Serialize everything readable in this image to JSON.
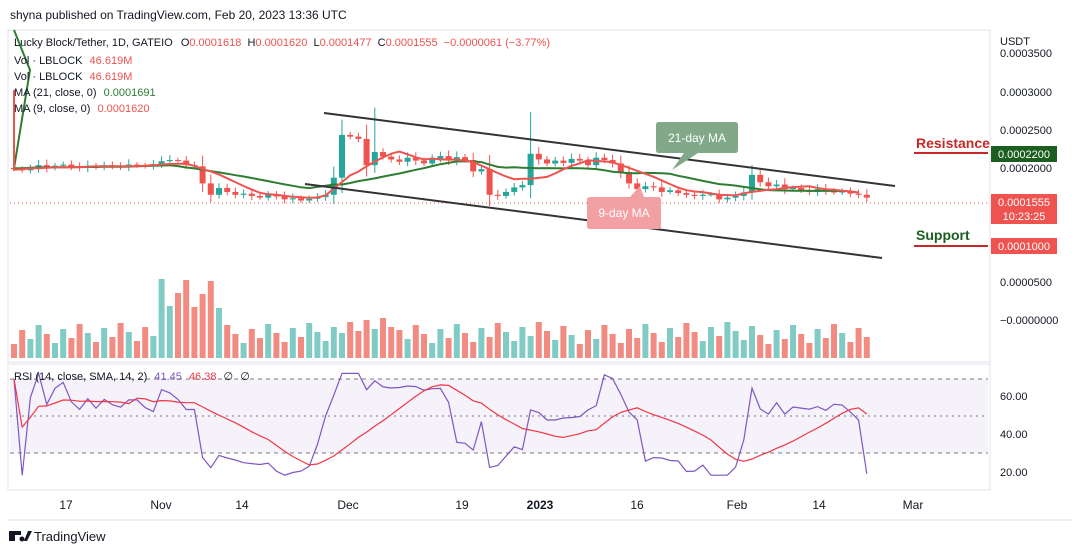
{
  "header": {
    "publisher": "shyna published on TradingView.com, Feb 20, 2023 13:36 UTC"
  },
  "legend": {
    "symbol": "Lucky Block/Tether, 1D, GATEIO",
    "o_label": "O",
    "o_val": "0.0001618",
    "h_label": "H",
    "h_val": "0.0001620",
    "l_label": "L",
    "l_val": "0.0001477",
    "c_label": "C",
    "c_val": "0.0001555",
    "change": "−0.0000061 (−3.77%)",
    "vol1_label": "Vol · LBLOCK",
    "vol1_val": "46.619M",
    "vol2_label": "Vol · LBLOCK",
    "vol2_val": "46.619M",
    "ma21_label": "MA (21, close, 0)",
    "ma21_val": "0.0001691",
    "ma9_label": "MA (9, close, 0)",
    "ma9_val": "0.0001620"
  },
  "rsi_legend": {
    "label": "RSI (14, close, SMA, 14, 2)",
    "v1": "41.45",
    "v2": "46.38",
    "v3": "∅",
    "v4": "∅"
  },
  "price_axis": {
    "currency": "USDT",
    "labels": [
      "0.0003500",
      "0.0003000",
      "0.0002500",
      "0.0002000",
      "0.0000500",
      "−0.0000000"
    ],
    "resistance_value": "0.0002200",
    "current_price": "0.0001555",
    "countdown": "10:23:25",
    "support_value": "0.0001000"
  },
  "rsi_axis": {
    "labels": [
      "60.00",
      "40.00",
      "20.00"
    ]
  },
  "time_axis": {
    "labels": [
      "17",
      "Nov",
      "14",
      "Dec",
      "19",
      "2023",
      "16",
      "Feb",
      "14",
      "Mar"
    ]
  },
  "annotations": {
    "resistance": "Resistance",
    "support": "Support",
    "ma21_tag": "21-day MA",
    "ma9_tag": "9-day MA"
  },
  "footer": {
    "brand": "TradingView"
  },
  "colors": {
    "up": "#26a69a",
    "down": "#ef5350",
    "up_vol": "#80cbc4",
    "down_vol": "#f28b82",
    "ma21": "#2e7d32",
    "ma9": "#ef5350",
    "rsi": "#7e57c2",
    "rsi_ma": "#f23645",
    "resistance": "#c62828",
    "support": "#1b5e20",
    "channel": "#333333"
  },
  "chart_data": {
    "type": "candlestick",
    "title": "Lucky Block/Tether, 1D, GATEIO",
    "y_unit": "USDT",
    "x_ticks": [
      "17",
      "Nov",
      "14",
      "Dec",
      "19",
      "2023",
      "16",
      "Feb",
      "14",
      "Mar"
    ],
    "key_levels": {
      "resistance": 0.00022,
      "support": 0.0001,
      "last_close": 0.0001555
    },
    "ma21_last": 0.0001691,
    "ma9_last": 0.000162,
    "rsi_last": 41.45,
    "rsi_ma_last": 46.38,
    "rsi_levels": [
      70,
      50,
      30
    ],
    "close_series_approx": [
      0.000205,
      0.000203,
      0.000206,
      0.000212,
      0.000207,
      0.000211,
      0.000213,
      0.000209,
      0.000207,
      0.000211,
      0.000208,
      0.000212,
      0.00021,
      0.000209,
      0.000213,
      0.000211,
      0.00021,
      0.000214,
      0.000219,
      0.000221,
      0.00022,
      0.000212,
      0.00021,
      0.00018,
      0.00016,
      0.000172,
      0.000165,
      0.00016,
      0.000162,
      0.000158,
      0.000155,
      0.00016,
      0.000157,
      0.000152,
      0.000154,
      0.00015,
      0.000153,
      0.000156,
      0.00016,
      0.00019,
      0.000265,
      0.000262,
      0.000258,
      0.000212,
      0.000235,
      0.000227,
      0.000222,
      0.000218,
      0.000225,
      0.00022,
      0.000215,
      0.000223,
      0.000228,
      0.00022,
      0.000226,
      0.000221,
      0.000201,
      0.000205,
      0.00016,
      0.000158,
      0.000165,
      0.000173,
      0.000177,
      0.000232,
      0.000222,
      0.000215,
      0.00022,
      0.000216,
      0.000223,
      0.00022,
      0.000212,
      0.000225,
      0.000221,
      0.000215,
      0.0002,
      0.00018,
      0.00017,
      0.000175,
      0.000173,
      0.000165,
      0.000168,
      0.000163,
      0.00016,
      0.000158,
      0.00016,
      0.000161,
      0.000152,
      0.000155,
      0.000158,
      0.000164,
      0.000195,
      0.000182,
      0.000175,
      0.000178,
      0.00017,
      0.000172,
      0.000168,
      0.000165,
      0.00017,
      0.000167,
      0.000164,
      0.000166,
      0.000162,
      0.00016,
      0.000155
    ]
  }
}
